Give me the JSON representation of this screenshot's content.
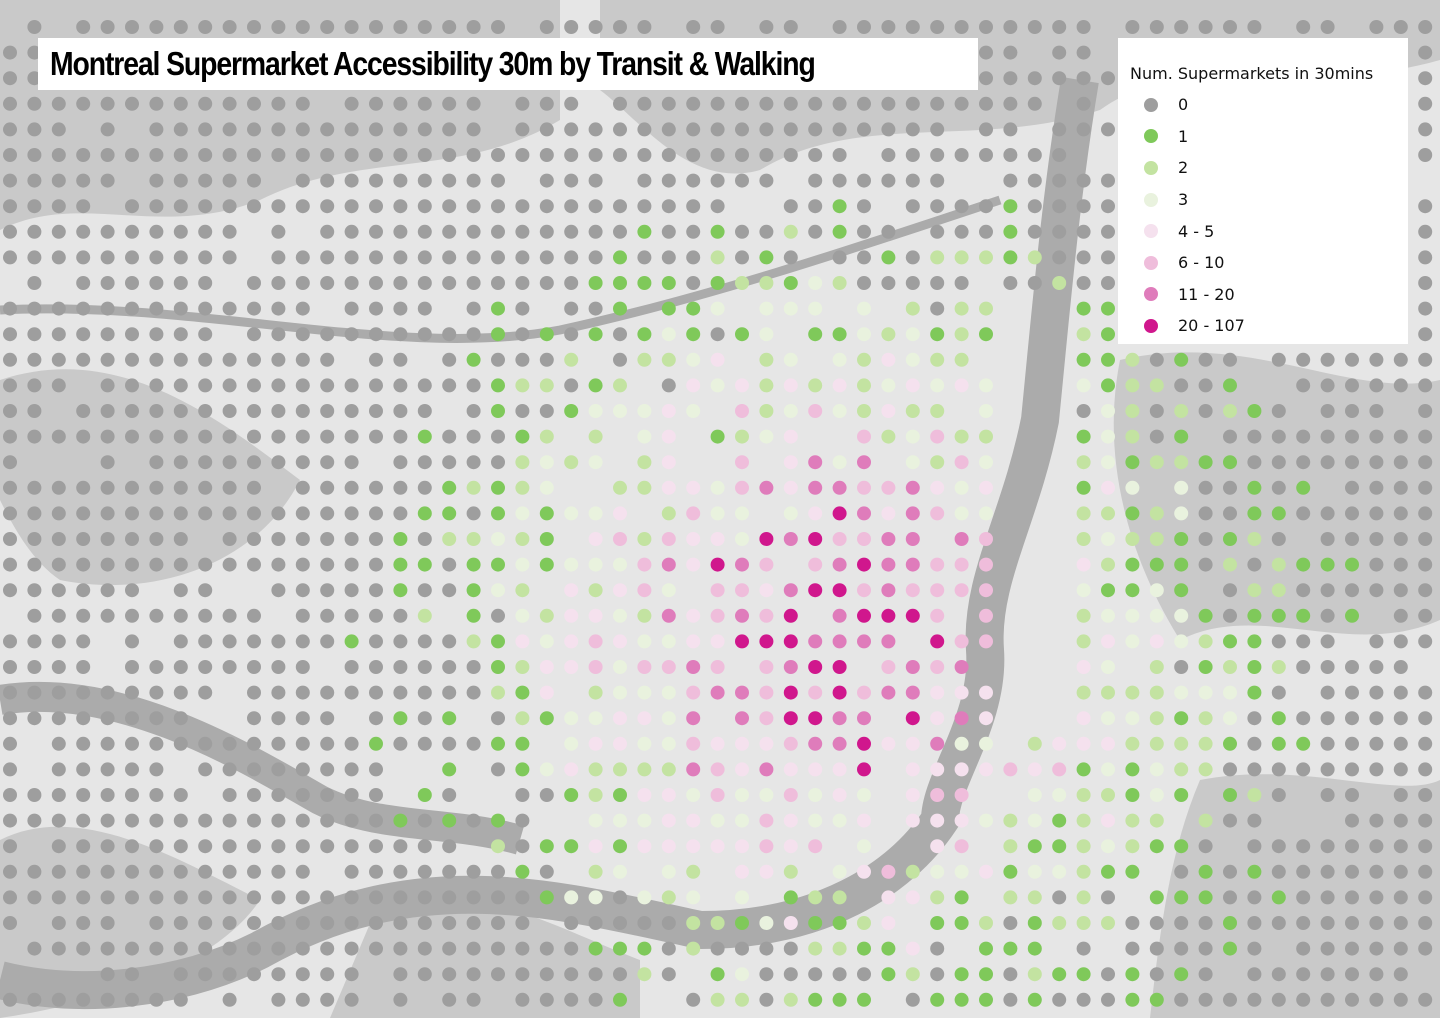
{
  "title": "Montreal Supermarket Accessibility 30m by Transit & Walking",
  "legend": {
    "title": "Num. Supermarkets in 30mins",
    "items": [
      {
        "label": "0",
        "color": "#9e9e9e"
      },
      {
        "label": "1",
        "color": "#7fc95a"
      },
      {
        "label": "2",
        "color": "#c3e3a1"
      },
      {
        "label": "3",
        "color": "#e9f2de"
      },
      {
        "label": "4 - 5",
        "color": "#f5e1ee"
      },
      {
        "label": "6 - 10",
        "color": "#efbddb"
      },
      {
        "label": "11 - 20",
        "color": "#df7cbb"
      },
      {
        "label": "20 - 107",
        "color": "#d0178d"
      }
    ]
  }
}
